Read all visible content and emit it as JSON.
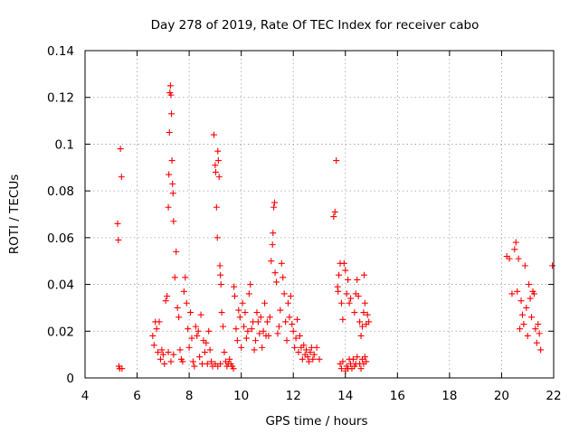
{
  "chart_data": {
    "type": "scatter",
    "title": "Day 278 of 2019, Rate Of TEC Index for receiver cabo",
    "xlabel": "GPS time / hours",
    "ylabel": "ROTI / TECUs",
    "xlim": [
      4,
      22
    ],
    "ylim": [
      0,
      0.14
    ],
    "xticks": [
      "4",
      "6",
      "8",
      "10",
      "12",
      "14",
      "16",
      "18",
      "20",
      "22"
    ],
    "yticks": [
      "0",
      "0.02",
      "0.04",
      "0.06",
      "0.08",
      "0.1",
      "0.12",
      "0.14"
    ],
    "grid": true,
    "marker": "+",
    "color": "#ff0000",
    "series": [
      {
        "name": "ROTI",
        "points": [
          [
            5.25,
            0.066
          ],
          [
            5.28,
            0.059
          ],
          [
            5.3,
            0.005
          ],
          [
            5.33,
            0.004
          ],
          [
            5.36,
            0.098
          ],
          [
            5.4,
            0.086
          ],
          [
            5.42,
            0.004
          ],
          [
            6.6,
            0.018
          ],
          [
            6.65,
            0.014
          ],
          [
            6.7,
            0.024
          ],
          [
            6.75,
            0.021
          ],
          [
            6.8,
            0.011
          ],
          [
            6.85,
            0.024
          ],
          [
            6.9,
            0.008
          ],
          [
            6.95,
            0.012
          ],
          [
            7.0,
            0.01
          ],
          [
            7.05,
            0.006
          ],
          [
            7.1,
            0.033
          ],
          [
            7.15,
            0.035
          ],
          [
            7.2,
            0.073
          ],
          [
            7.22,
            0.087
          ],
          [
            7.24,
            0.105
          ],
          [
            7.26,
            0.122
          ],
          [
            7.28,
            0.125
          ],
          [
            7.3,
            0.121
          ],
          [
            7.32,
            0.113
          ],
          [
            7.34,
            0.093
          ],
          [
            7.36,
            0.083
          ],
          [
            7.38,
            0.079
          ],
          [
            7.4,
            0.067
          ],
          [
            7.2,
            0.011
          ],
          [
            7.3,
            0.007
          ],
          [
            7.4,
            0.01
          ],
          [
            7.45,
            0.043
          ],
          [
            7.5,
            0.054
          ],
          [
            7.55,
            0.03
          ],
          [
            7.6,
            0.026
          ],
          [
            7.65,
            0.012
          ],
          [
            7.7,
            0.008
          ],
          [
            7.75,
            0.007
          ],
          [
            7.8,
            0.037
          ],
          [
            7.85,
            0.043
          ],
          [
            7.9,
            0.032
          ],
          [
            7.95,
            0.021
          ],
          [
            8.0,
            0.013
          ],
          [
            8.05,
            0.028
          ],
          [
            8.1,
            0.017
          ],
          [
            8.15,
            0.007
          ],
          [
            8.2,
            0.005
          ],
          [
            8.25,
            0.022
          ],
          [
            8.3,
            0.018
          ],
          [
            8.35,
            0.02
          ],
          [
            8.4,
            0.009
          ],
          [
            8.45,
            0.027
          ],
          [
            8.5,
            0.006
          ],
          [
            8.55,
            0.016
          ],
          [
            8.6,
            0.011
          ],
          [
            8.65,
            0.015
          ],
          [
            8.7,
            0.006
          ],
          [
            8.75,
            0.02
          ],
          [
            8.8,
            0.012
          ],
          [
            8.85,
            0.007
          ],
          [
            8.9,
            0.005
          ],
          [
            8.95,
            0.104
          ],
          [
            9.0,
            0.091
          ],
          [
            9.02,
            0.088
          ],
          [
            9.05,
            0.073
          ],
          [
            9.08,
            0.06
          ],
          [
            9.1,
            0.097
          ],
          [
            9.12,
            0.093
          ],
          [
            9.15,
            0.086
          ],
          [
            9.18,
            0.048
          ],
          [
            9.2,
            0.044
          ],
          [
            9.22,
            0.04
          ],
          [
            9.0,
            0.006
          ],
          [
            9.1,
            0.005
          ],
          [
            9.2,
            0.006
          ],
          [
            9.25,
            0.028
          ],
          [
            9.3,
            0.022
          ],
          [
            9.35,
            0.011
          ],
          [
            9.4,
            0.007
          ],
          [
            9.45,
            0.005
          ],
          [
            9.5,
            0.006
          ],
          [
            9.55,
            0.008
          ],
          [
            9.6,
            0.006
          ],
          [
            9.65,
            0.005
          ],
          [
            9.7,
            0.004
          ],
          [
            9.72,
            0.039
          ],
          [
            9.75,
            0.035
          ],
          [
            9.8,
            0.021
          ],
          [
            9.85,
            0.016
          ],
          [
            9.9,
            0.029
          ],
          [
            9.95,
            0.026
          ],
          [
            10.0,
            0.013
          ],
          [
            10.05,
            0.032
          ],
          [
            10.1,
            0.022
          ],
          [
            10.15,
            0.028
          ],
          [
            10.2,
            0.017
          ],
          [
            10.25,
            0.02
          ],
          [
            10.3,
            0.036
          ],
          [
            10.35,
            0.04
          ],
          [
            10.4,
            0.021
          ],
          [
            10.45,
            0.024
          ],
          [
            10.5,
            0.012
          ],
          [
            10.55,
            0.016
          ],
          [
            10.6,
            0.028
          ],
          [
            10.65,
            0.024
          ],
          [
            10.7,
            0.019
          ],
          [
            10.75,
            0.026
          ],
          [
            10.8,
            0.013
          ],
          [
            10.85,
            0.02
          ],
          [
            10.9,
            0.032
          ],
          [
            10.95,
            0.018
          ],
          [
            11.0,
            0.024
          ],
          [
            11.05,
            0.018
          ],
          [
            11.1,
            0.026
          ],
          [
            11.15,
            0.05
          ],
          [
            11.2,
            0.057
          ],
          [
            11.22,
            0.062
          ],
          [
            11.25,
            0.073
          ],
          [
            11.28,
            0.075
          ],
          [
            11.3,
            0.045
          ],
          [
            11.35,
            0.041
          ],
          [
            11.4,
            0.019
          ],
          [
            11.45,
            0.022
          ],
          [
            11.5,
            0.029
          ],
          [
            11.55,
            0.049
          ],
          [
            11.6,
            0.043
          ],
          [
            11.65,
            0.036
          ],
          [
            11.7,
            0.024
          ],
          [
            11.75,
            0.016
          ],
          [
            11.8,
            0.032
          ],
          [
            11.85,
            0.026
          ],
          [
            11.9,
            0.035
          ],
          [
            11.95,
            0.023
          ],
          [
            12.0,
            0.02
          ],
          [
            12.05,
            0.013
          ],
          [
            12.1,
            0.017
          ],
          [
            12.15,
            0.025
          ],
          [
            12.2,
            0.011
          ],
          [
            12.25,
            0.018
          ],
          [
            12.3,
            0.013
          ],
          [
            12.35,
            0.008
          ],
          [
            12.4,
            0.014
          ],
          [
            12.45,
            0.01
          ],
          [
            12.5,
            0.012
          ],
          [
            12.55,
            0.009
          ],
          [
            12.6,
            0.007
          ],
          [
            12.65,
            0.011
          ],
          [
            12.7,
            0.013
          ],
          [
            12.75,
            0.008
          ],
          [
            12.8,
            0.01
          ],
          [
            12.9,
            0.013
          ],
          [
            13.0,
            0.008
          ],
          [
            13.55,
            0.069
          ],
          [
            13.6,
            0.071
          ],
          [
            13.65,
            0.093
          ],
          [
            13.7,
            0.039
          ],
          [
            13.72,
            0.037
          ],
          [
            13.75,
            0.044
          ],
          [
            13.8,
            0.049
          ],
          [
            13.85,
            0.032
          ],
          [
            13.9,
            0.025
          ],
          [
            13.95,
            0.049
          ],
          [
            14.0,
            0.046
          ],
          [
            14.05,
            0.036
          ],
          [
            14.1,
            0.042
          ],
          [
            14.15,
            0.032
          ],
          [
            14.2,
            0.034
          ],
          [
            13.8,
            0.006
          ],
          [
            13.85,
            0.004
          ],
          [
            13.9,
            0.007
          ],
          [
            14.0,
            0.003
          ],
          [
            14.05,
            0.005
          ],
          [
            14.1,
            0.004
          ],
          [
            14.15,
            0.008
          ],
          [
            14.2,
            0.006
          ],
          [
            14.25,
            0.004
          ],
          [
            14.3,
            0.008
          ],
          [
            14.35,
            0.005
          ],
          [
            14.4,
            0.006
          ],
          [
            14.45,
            0.009
          ],
          [
            14.35,
            0.028
          ],
          [
            14.4,
            0.036
          ],
          [
            14.45,
            0.042
          ],
          [
            14.5,
            0.035
          ],
          [
            14.55,
            0.024
          ],
          [
            14.6,
            0.018
          ],
          [
            14.65,
            0.022
          ],
          [
            14.7,
            0.028
          ],
          [
            14.72,
            0.044
          ],
          [
            14.75,
            0.032
          ],
          [
            14.8,
            0.023
          ],
          [
            14.85,
            0.027
          ],
          [
            14.9,
            0.024
          ],
          [
            14.55,
            0.006
          ],
          [
            14.6,
            0.004
          ],
          [
            14.65,
            0.008
          ],
          [
            14.7,
            0.006
          ],
          [
            14.75,
            0.009
          ],
          [
            14.8,
            0.007
          ],
          [
            20.2,
            0.052
          ],
          [
            20.3,
            0.051
          ],
          [
            20.4,
            0.036
          ],
          [
            20.5,
            0.055
          ],
          [
            20.55,
            0.058
          ],
          [
            20.6,
            0.037
          ],
          [
            20.65,
            0.051
          ],
          [
            20.7,
            0.021
          ],
          [
            20.75,
            0.033
          ],
          [
            20.8,
            0.027
          ],
          [
            20.85,
            0.023
          ],
          [
            20.9,
            0.048
          ],
          [
            20.95,
            0.03
          ],
          [
            21.0,
            0.018
          ],
          [
            21.05,
            0.04
          ],
          [
            21.1,
            0.034
          ],
          [
            21.15,
            0.026
          ],
          [
            21.2,
            0.037
          ],
          [
            21.25,
            0.036
          ],
          [
            21.3,
            0.021
          ],
          [
            21.35,
            0.015
          ],
          [
            21.4,
            0.023
          ],
          [
            21.45,
            0.019
          ],
          [
            21.5,
            0.012
          ],
          [
            21.95,
            0.048
          ]
        ]
      }
    ]
  }
}
